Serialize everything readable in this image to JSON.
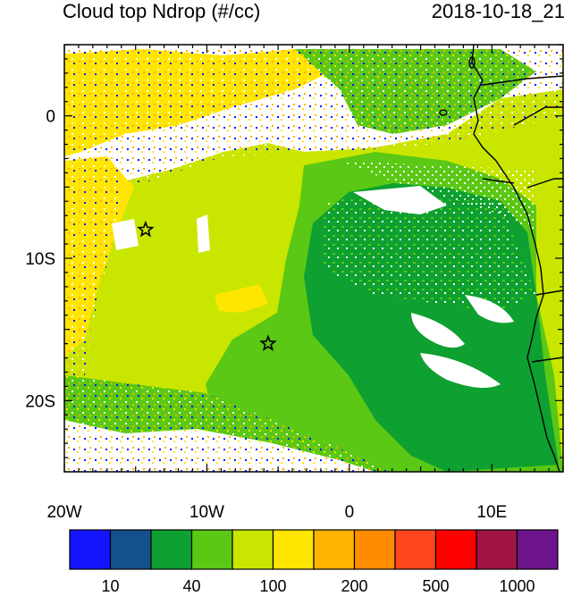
{
  "header": {
    "title": "Cloud top Ndrop (#/cc)",
    "timestamp": "2018-10-18_21"
  },
  "map": {
    "lon_labels": [
      "20W",
      "10W",
      "0",
      "10E"
    ],
    "lat_labels": [
      "0",
      "10S",
      "20S"
    ],
    "markers": [
      {
        "name": "site-a",
        "lon": -14.3,
        "lat": -8.0
      },
      {
        "name": "site-b",
        "lon": -5.7,
        "lat": -16.0
      }
    ],
    "field_colors": {
      "white": "#ffffff",
      "yellow_green": "#c8e600",
      "light_green": "#5ac814",
      "green": "#0ea030",
      "yellow": "#ffe600",
      "orange": "#ffb400"
    }
  },
  "colorbar": {
    "colors": [
      "#1414ff",
      "#14508c",
      "#0ea030",
      "#5ac814",
      "#c8e600",
      "#ffe600",
      "#ffb400",
      "#ff8c00",
      "#ff461e",
      "#ff0000",
      "#a01446",
      "#6e148c"
    ],
    "tick_labels": [
      "10",
      "40",
      "100",
      "200",
      "500",
      "1000"
    ]
  }
}
